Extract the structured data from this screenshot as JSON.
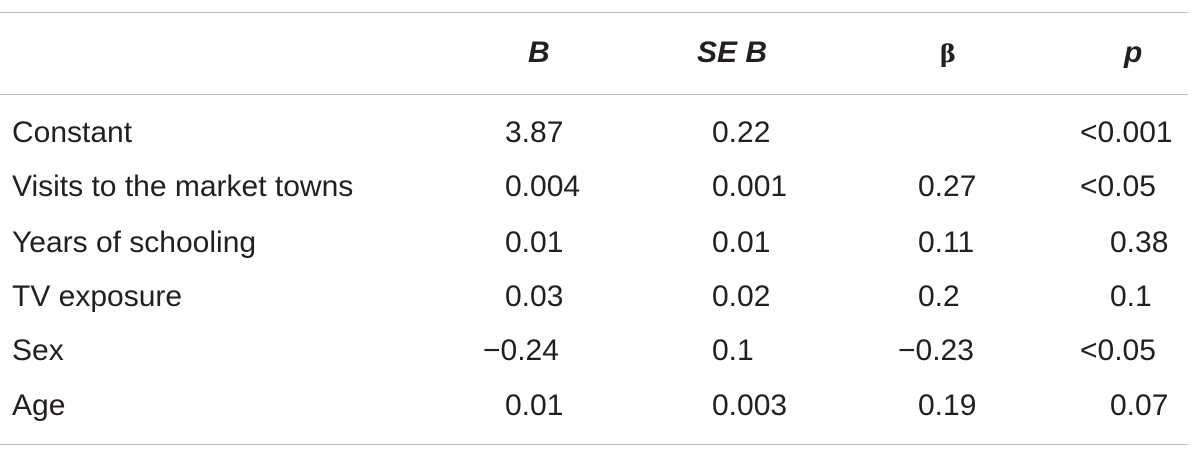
{
  "table": {
    "headers": {
      "b": "B",
      "se_b": "SE B",
      "beta": "β",
      "p": "p"
    },
    "rows": [
      {
        "label": "Constant",
        "b": "3.87",
        "se_b": "0.22",
        "beta": "",
        "p": "<0.001"
      },
      {
        "label": "Visits to the market towns",
        "b": "0.004",
        "se_b": "0.001",
        "beta": "0.27",
        "p": "<0.05"
      },
      {
        "label": "Years of schooling",
        "b": "0.01",
        "se_b": "0.01",
        "beta": "0.11",
        "p": "0.38"
      },
      {
        "label": "TV exposure",
        "b": "0.03",
        "se_b": "0.02",
        "beta": "0.2",
        "p": "0.1"
      },
      {
        "label": "Sex",
        "b": "−0.24",
        "se_b": "0.1",
        "beta": "−0.23",
        "p": "<0.05"
      },
      {
        "label": "Age",
        "b": "0.01",
        "se_b": "0.003",
        "beta": "0.19",
        "p": "0.07"
      }
    ]
  }
}
